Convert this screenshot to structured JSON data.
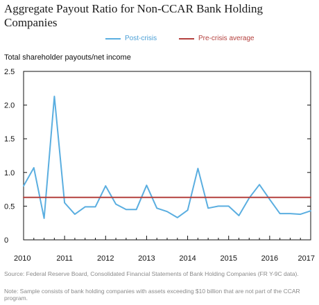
{
  "chart_data": {
    "type": "line",
    "title": "Aggregate Payout Ratio for Non-CCAR Bank Holding Companies",
    "ylabel": "Total shareholder payouts/net income",
    "xlabel": "",
    "ylim": [
      0,
      2.5
    ],
    "xlim": [
      2010,
      2017
    ],
    "yticks": [
      "0",
      "0.5",
      "1.0",
      "1.5",
      "2.0",
      "2.5"
    ],
    "xticks": [
      "2010",
      "2011",
      "2012",
      "2013",
      "2014",
      "2015",
      "2016",
      "2017"
    ],
    "legend_position": "top-center",
    "grid": false,
    "series": [
      {
        "name": "Post-crisis",
        "color": "#5aaee0",
        "x": [
          2010.0,
          2010.25,
          2010.5,
          2010.75,
          2011.0,
          2011.25,
          2011.5,
          2011.75,
          2012.0,
          2012.25,
          2012.5,
          2012.75,
          2013.0,
          2013.25,
          2013.5,
          2013.75,
          2014.0,
          2014.25,
          2014.5,
          2014.75,
          2015.0,
          2015.25,
          2015.5,
          2015.75,
          2016.0,
          2016.25,
          2016.5,
          2016.75,
          2017.0
        ],
        "values": [
          0.8,
          1.07,
          0.32,
          2.13,
          0.55,
          0.38,
          0.49,
          0.49,
          0.8,
          0.53,
          0.45,
          0.45,
          0.81,
          0.47,
          0.42,
          0.33,
          0.44,
          1.06,
          0.47,
          0.5,
          0.5,
          0.36,
          0.62,
          0.82,
          0.6,
          0.39,
          0.39,
          0.38,
          0.43
        ]
      },
      {
        "name": "Pre-crisis average",
        "color": "#b4403d",
        "x": [
          2010.0,
          2017.0
        ],
        "values": [
          0.63,
          0.63
        ]
      }
    ]
  },
  "source": "Source: Federal Reserve Board, Consolidated Financial Statements of Bank Holding Companies (FR Y-9C data).",
  "note": "Note: Sample consists of bank holding companies with assets exceeding $10 billion that are not part of the CCAR program."
}
